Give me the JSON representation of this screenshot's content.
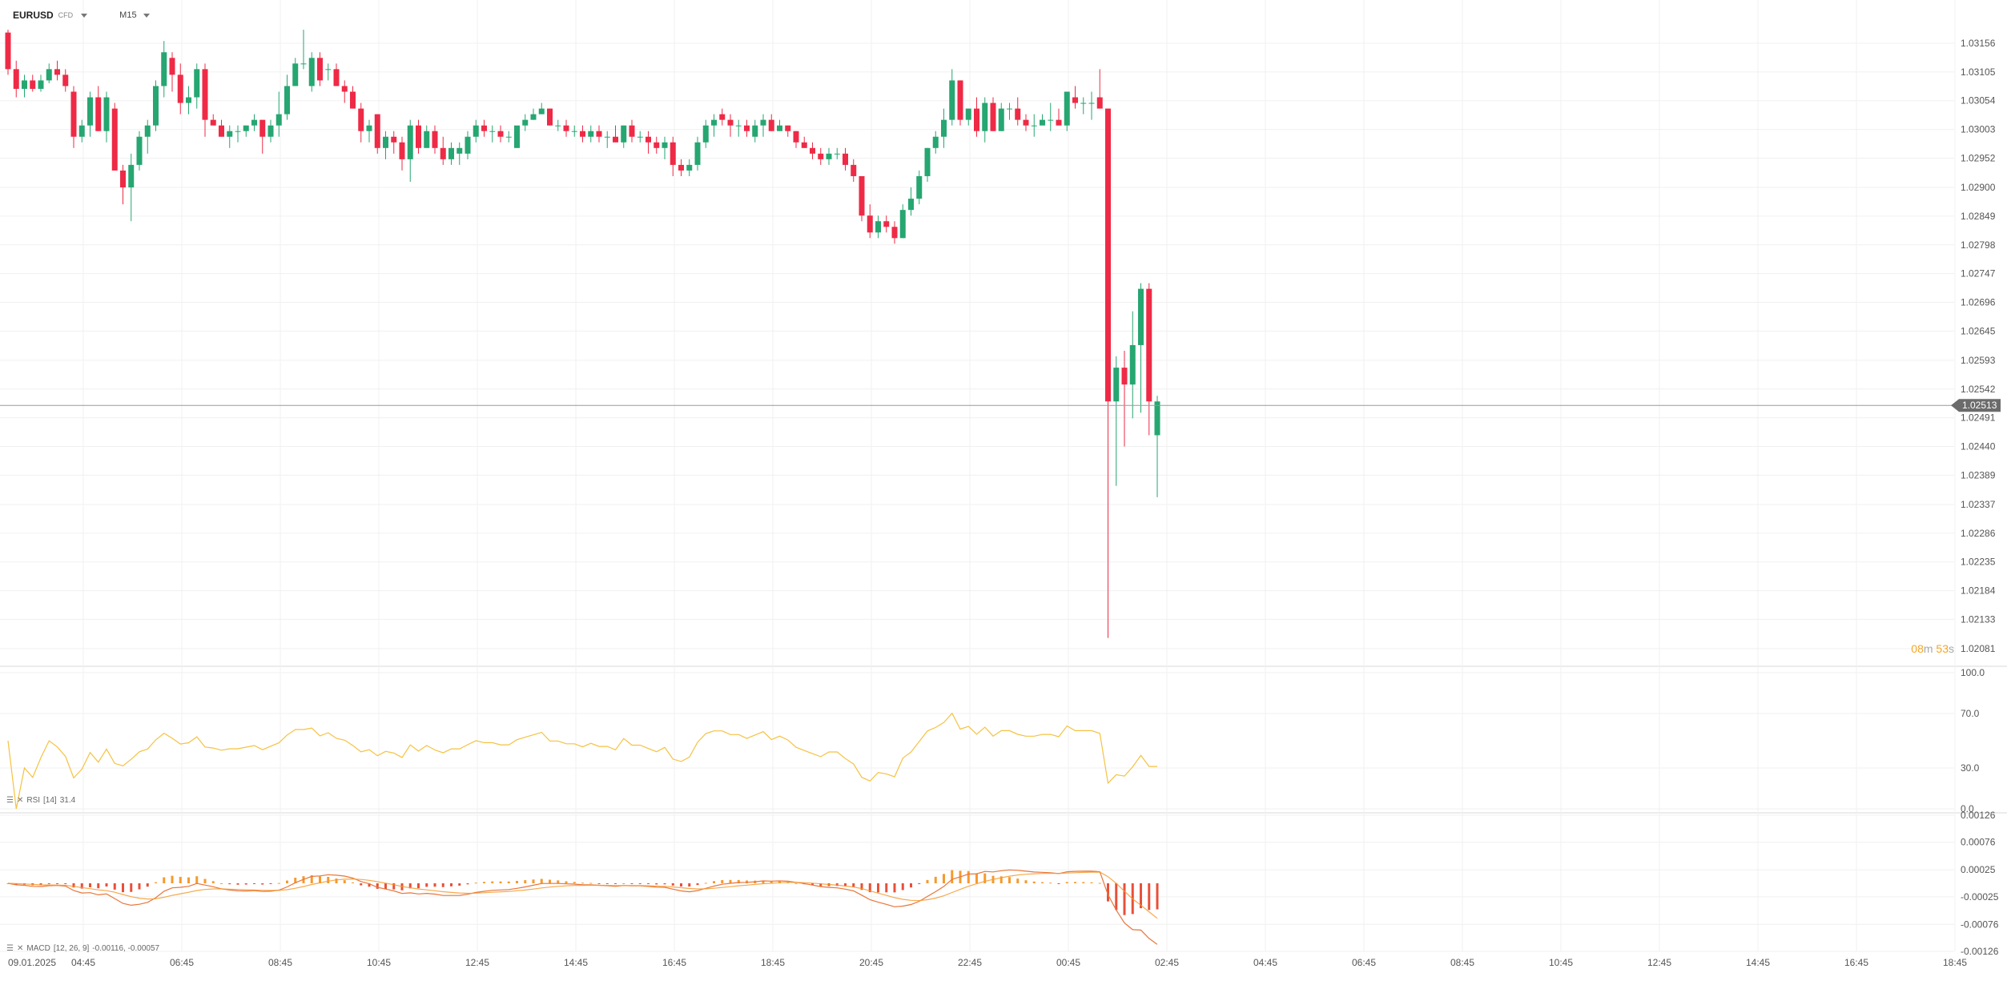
{
  "toolbar": {
    "symbol": "EURUSD",
    "symbol_sub": "CFD",
    "timeframe": "M15"
  },
  "countdown": {
    "minutes": "08",
    "m_unit": "m",
    "seconds": "53",
    "s_unit": "s"
  },
  "price_axis": {
    "ticks": [
      "1.03156",
      "1.03105",
      "1.03054",
      "1.03003",
      "1.02952",
      "1.02900",
      "1.02849",
      "1.02798",
      "1.02747",
      "1.02696",
      "1.02645",
      "1.02593",
      "1.02542",
      "1.02491",
      "1.02440",
      "1.02389",
      "1.02337",
      "1.02286",
      "1.02235",
      "1.02184",
      "1.02133",
      "1.02081"
    ],
    "current_price": "1.02513",
    "range": [
      1.02081,
      1.03156
    ]
  },
  "time_axis": {
    "date_label": "09.01.2025",
    "labels": [
      "04:45",
      "06:45",
      "08:45",
      "10:45",
      "12:45",
      "14:45",
      "16:45",
      "18:45",
      "20:45",
      "22:45",
      "00:45",
      "02:45",
      "04:45",
      "06:45",
      "08:45",
      "10:45",
      "12:45",
      "14:45",
      "16:45",
      "18:45"
    ]
  },
  "rsi": {
    "label": "RSI",
    "params": "[14]",
    "value": "31.4",
    "ticks": [
      "100.0",
      "70.0",
      "30.0",
      "0.0"
    ],
    "color": "#f5c242",
    "range": [
      0,
      100
    ]
  },
  "macd": {
    "label": "MACD",
    "params": "[12, 26, 9]",
    "values": "-0.00116, -0.00057",
    "ticks": [
      "0.00126",
      "0.00076",
      "0.00025",
      "-0.00025",
      "-0.00076",
      "-0.00126"
    ],
    "line_color": "#e8763a",
    "hist_up_color": "#f59a2e",
    "hist_down_color": "#e8503a",
    "range": [
      -0.00126,
      0.00126
    ]
  },
  "colors": {
    "up": "#26a671",
    "down": "#ee2a46",
    "background": "#ffffff",
    "grid": "#f0f0f0"
  },
  "chart_data": {
    "type": "candlestick",
    "ylim": [
      1.02081,
      1.03156
    ],
    "candles": [
      [
        1.03175,
        1.0318,
        1.031,
        1.0311
      ],
      [
        1.0311,
        1.03125,
        1.0306,
        1.03075
      ],
      [
        1.03075,
        1.031,
        1.0306,
        1.0309
      ],
      [
        1.0309,
        1.031,
        1.0307,
        1.03075
      ],
      [
        1.03075,
        1.031,
        1.0307,
        1.0309
      ],
      [
        1.0309,
        1.0312,
        1.03085,
        1.0311
      ],
      [
        1.0311,
        1.03125,
        1.0309,
        1.031
      ],
      [
        1.031,
        1.0311,
        1.0307,
        1.0308
      ],
      [
        1.0307,
        1.0308,
        1.0297,
        1.0299
      ],
      [
        1.0299,
        1.0302,
        1.0298,
        1.0301
      ],
      [
        1.0301,
        1.0307,
        1.0299,
        1.0306
      ],
      [
        1.0306,
        1.0308,
        1.03,
        1.03
      ],
      [
        1.03,
        1.0307,
        1.0298,
        1.0306
      ],
      [
        1.0304,
        1.0305,
        1.0293,
        1.0293
      ],
      [
        1.0293,
        1.0294,
        1.0287,
        1.029
      ],
      [
        1.029,
        1.0296,
        1.0284,
        1.0294
      ],
      [
        1.0294,
        1.03,
        1.0293,
        1.0299
      ],
      [
        1.0299,
        1.0302,
        1.0296,
        1.0301
      ],
      [
        1.0301,
        1.0309,
        1.03,
        1.0308
      ],
      [
        1.0308,
        1.0316,
        1.0306,
        1.0314
      ],
      [
        1.0313,
        1.0314,
        1.0307,
        1.031
      ],
      [
        1.031,
        1.0312,
        1.0303,
        1.0305
      ],
      [
        1.0305,
        1.0308,
        1.0303,
        1.0306
      ],
      [
        1.0306,
        1.0312,
        1.0304,
        1.0311
      ],
      [
        1.0311,
        1.0312,
        1.0299,
        1.0302
      ],
      [
        1.0302,
        1.0303,
        1.0301,
        1.0301
      ],
      [
        1.0301,
        1.0302,
        1.0299,
        1.0299
      ],
      [
        1.0299,
        1.0301,
        1.0297,
        1.03
      ],
      [
        1.03,
        1.0301,
        1.0298,
        1.03
      ],
      [
        1.03,
        1.0301,
        1.0299,
        1.0301
      ],
      [
        1.0301,
        1.0303,
        1.03,
        1.0302
      ],
      [
        1.0302,
        1.0302,
        1.0296,
        1.0299
      ],
      [
        1.0299,
        1.0302,
        1.0298,
        1.0301
      ],
      [
        1.0301,
        1.0307,
        1.0299,
        1.0303
      ],
      [
        1.0303,
        1.031,
        1.0302,
        1.0308
      ],
      [
        1.0308,
        1.0313,
        1.0308,
        1.0312
      ],
      [
        1.0312,
        1.0318,
        1.0311,
        1.0312
      ],
      [
        1.0308,
        1.0314,
        1.0307,
        1.0313
      ],
      [
        1.0313,
        1.0314,
        1.0308,
        1.0309
      ],
      [
        1.0311,
        1.0312,
        1.0309,
        1.0311
      ],
      [
        1.0311,
        1.0312,
        1.0308,
        1.0308
      ],
      [
        1.0308,
        1.0309,
        1.0305,
        1.0307
      ],
      [
        1.0307,
        1.0308,
        1.0304,
        1.0304
      ],
      [
        1.0304,
        1.0305,
        1.0298,
        1.03
      ],
      [
        1.03,
        1.0302,
        1.0298,
        1.0301
      ],
      [
        1.0303,
        1.0303,
        1.0296,
        1.0297
      ],
      [
        1.0297,
        1.03,
        1.0295,
        1.0299
      ],
      [
        1.0299,
        1.03,
        1.0296,
        1.0298
      ],
      [
        1.0298,
        1.0299,
        1.0293,
        1.0295
      ],
      [
        1.0295,
        1.0302,
        1.0291,
        1.0301
      ],
      [
        1.0301,
        1.0302,
        1.0296,
        1.0297
      ],
      [
        1.0297,
        1.0301,
        1.0297,
        1.03
      ],
      [
        1.03,
        1.0301,
        1.0296,
        1.0297
      ],
      [
        1.0297,
        1.0299,
        1.0294,
        1.0295
      ],
      [
        1.0295,
        1.0298,
        1.0294,
        1.0297
      ],
      [
        1.0296,
        1.0298,
        1.0294,
        1.0297
      ],
      [
        1.0296,
        1.03,
        1.0295,
        1.0299
      ],
      [
        1.0299,
        1.0302,
        1.0298,
        1.0301
      ],
      [
        1.0301,
        1.0302,
        1.0299,
        1.03
      ],
      [
        1.03,
        1.0301,
        1.0298,
        1.03
      ],
      [
        1.03,
        1.0301,
        1.0298,
        1.0299
      ],
      [
        1.0299,
        1.03,
        1.0298,
        1.0299
      ],
      [
        1.0297,
        1.03,
        1.0297,
        1.0301
      ],
      [
        1.0301,
        1.0303,
        1.03,
        1.0302
      ],
      [
        1.0302,
        1.0304,
        1.0302,
        1.0303
      ],
      [
        1.0303,
        1.0305,
        1.0303,
        1.0304
      ],
      [
        1.0304,
        1.0304,
        1.0301,
        1.0301
      ],
      [
        1.0301,
        1.0302,
        1.03,
        1.0301
      ],
      [
        1.0301,
        1.0302,
        1.0299,
        1.03
      ],
      [
        1.03,
        1.0301,
        1.0299,
        1.03
      ],
      [
        1.03,
        1.0301,
        1.0298,
        1.0299
      ],
      [
        1.0299,
        1.0301,
        1.0298,
        1.03
      ],
      [
        1.03,
        1.0301,
        1.0298,
        1.0299
      ],
      [
        1.0299,
        1.03,
        1.0297,
        1.0299
      ],
      [
        1.0299,
        1.0301,
        1.0298,
        1.0298
      ],
      [
        1.0298,
        1.0301,
        1.0297,
        1.0301
      ],
      [
        1.0301,
        1.0302,
        1.0298,
        1.0299
      ],
      [
        1.0299,
        1.03,
        1.0298,
        1.0299
      ],
      [
        1.0299,
        1.03,
        1.0296,
        1.0298
      ],
      [
        1.0298,
        1.0299,
        1.0296,
        1.0297
      ],
      [
        1.0297,
        1.0299,
        1.0295,
        1.0298
      ],
      [
        1.0298,
        1.0299,
        1.0292,
        1.0294
      ],
      [
        1.0294,
        1.0295,
        1.0292,
        1.0293
      ],
      [
        1.0293,
        1.0295,
        1.0292,
        1.0294
      ],
      [
        1.0294,
        1.0299,
        1.0293,
        1.0298
      ],
      [
        1.0298,
        1.0302,
        1.0297,
        1.0301
      ],
      [
        1.0301,
        1.0303,
        1.0299,
        1.0302
      ],
      [
        1.0303,
        1.0304,
        1.0301,
        1.0302
      ],
      [
        1.0302,
        1.0303,
        1.0299,
        1.0301
      ],
      [
        1.0301,
        1.0302,
        1.0299,
        1.0301
      ],
      [
        1.0301,
        1.0302,
        1.0299,
        1.03
      ],
      [
        1.0299,
        1.0302,
        1.0298,
        1.0301
      ],
      [
        1.0301,
        1.0303,
        1.0299,
        1.0302
      ],
      [
        1.0302,
        1.0303,
        1.03,
        1.03
      ],
      [
        1.03,
        1.0302,
        1.03,
        1.0301
      ],
      [
        1.0301,
        1.0301,
        1.0299,
        1.03
      ],
      [
        1.03,
        1.03,
        1.0297,
        1.0298
      ],
      [
        1.0298,
        1.0299,
        1.0297,
        1.0297
      ],
      [
        1.0297,
        1.0298,
        1.0295,
        1.0296
      ],
      [
        1.0296,
        1.0297,
        1.0294,
        1.0295
      ],
      [
        1.0295,
        1.0297,
        1.0294,
        1.0296
      ],
      [
        1.0296,
        1.0297,
        1.0295,
        1.0296
      ],
      [
        1.0296,
        1.0297,
        1.0293,
        1.0294
      ],
      [
        1.0294,
        1.0295,
        1.0291,
        1.0292
      ],
      [
        1.0292,
        1.0292,
        1.0284,
        1.0285
      ],
      [
        1.0285,
        1.0287,
        1.0281,
        1.0282
      ],
      [
        1.0282,
        1.0285,
        1.0281,
        1.0284
      ],
      [
        1.0284,
        1.0285,
        1.0282,
        1.0283
      ],
      [
        1.0283,
        1.0284,
        1.028,
        1.0281
      ],
      [
        1.0281,
        1.0287,
        1.0281,
        1.0286
      ],
      [
        1.0286,
        1.029,
        1.0285,
        1.0288
      ],
      [
        1.0288,
        1.0293,
        1.0287,
        1.0292
      ],
      [
        1.0292,
        1.0297,
        1.0291,
        1.0297
      ],
      [
        1.0297,
        1.03,
        1.0296,
        1.0299
      ],
      [
        1.0299,
        1.0304,
        1.0297,
        1.0302
      ],
      [
        1.0302,
        1.0311,
        1.0301,
        1.0309
      ],
      [
        1.0309,
        1.0309,
        1.0301,
        1.0302
      ],
      [
        1.0302,
        1.0304,
        1.0301,
        1.0304
      ],
      [
        1.0304,
        1.0306,
        1.0299,
        1.03
      ],
      [
        1.03,
        1.0306,
        1.0298,
        1.0305
      ],
      [
        1.0305,
        1.0306,
        1.03,
        1.03
      ],
      [
        1.03,
        1.0305,
        1.03,
        1.0304
      ],
      [
        1.0304,
        1.0305,
        1.0302,
        1.0304
      ],
      [
        1.0304,
        1.0306,
        1.0301,
        1.0302
      ],
      [
        1.0302,
        1.0303,
        1.03,
        1.0301
      ],
      [
        1.0301,
        1.0303,
        1.0299,
        1.0301
      ],
      [
        1.0301,
        1.0303,
        1.0301,
        1.0302
      ],
      [
        1.0302,
        1.0305,
        1.03,
        1.0302
      ],
      [
        1.0302,
        1.0304,
        1.0301,
        1.0301
      ],
      [
        1.0301,
        1.0307,
        1.03,
        1.0307
      ],
      [
        1.0306,
        1.0308,
        1.0304,
        1.0305
      ],
      [
        1.0305,
        1.0306,
        1.0303,
        1.0305
      ],
      [
        1.0305,
        1.0307,
        1.0302,
        1.0305
      ],
      [
        1.0306,
        1.0311,
        1.0304,
        1.0304
      ],
      [
        1.0304,
        1.0304,
        1.021,
        1.0252
      ],
      [
        1.0252,
        1.026,
        1.0237,
        1.0258
      ],
      [
        1.0258,
        1.0261,
        1.0244,
        1.0255
      ],
      [
        1.0255,
        1.0268,
        1.0249,
        1.0262
      ],
      [
        1.0262,
        1.0273,
        1.025,
        1.0272
      ],
      [
        1.0272,
        1.0273,
        1.0246,
        1.0252
      ],
      [
        1.0246,
        1.0253,
        1.0235,
        1.0252
      ]
    ]
  }
}
